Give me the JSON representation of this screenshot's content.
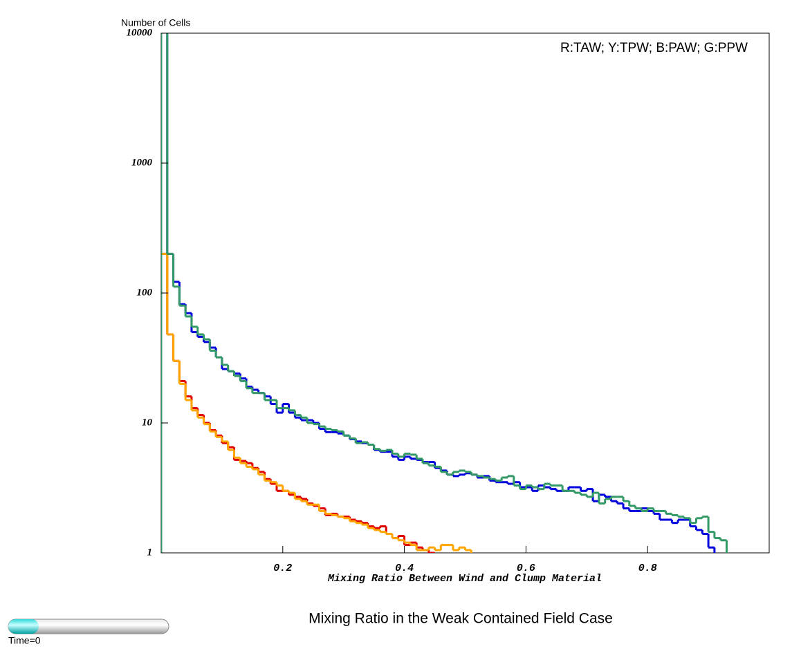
{
  "chart_data": {
    "type": "histogram-step",
    "title": "Mixing Ratio in the Weak Contained Field Case",
    "xlabel": "Mixing Ratio Between Wind and Clump Material",
    "ylabel": "Number of Cells",
    "annotation": "R:TAW; Y:TPW; B:PAW; G:PPW",
    "time_label": "Time=0",
    "log_y": true,
    "xlim": [
      0,
      1
    ],
    "ylim": [
      1,
      10000
    ],
    "xticks": [
      0.2,
      0.4,
      0.6,
      0.8
    ],
    "yticks": [
      1,
      10,
      100,
      1000,
      10000
    ],
    "bins": [
      0,
      0.01,
      0.02,
      0.03,
      0.04,
      0.05,
      0.06,
      0.07,
      0.08,
      0.09,
      0.1,
      0.11,
      0.12,
      0.13,
      0.14,
      0.15,
      0.16,
      0.17,
      0.18,
      0.19,
      0.2,
      0.21,
      0.22,
      0.23,
      0.24,
      0.25,
      0.26,
      0.27,
      0.28,
      0.29,
      0.3,
      0.31,
      0.32,
      0.33,
      0.34,
      0.35,
      0.36,
      0.37,
      0.38,
      0.39,
      0.4,
      0.41,
      0.42,
      0.43,
      0.44,
      0.45,
      0.46,
      0.47,
      0.48,
      0.49,
      0.5,
      0.51,
      0.52,
      0.53,
      0.54,
      0.55,
      0.56,
      0.57,
      0.58,
      0.59,
      0.6,
      0.61,
      0.62,
      0.63,
      0.64,
      0.65,
      0.66,
      0.67,
      0.68,
      0.69,
      0.7,
      0.71,
      0.72,
      0.73,
      0.74,
      0.75,
      0.76,
      0.77,
      0.78,
      0.79,
      0.8,
      0.81,
      0.82,
      0.83,
      0.84,
      0.85,
      0.86,
      0.87,
      0.88,
      0.89,
      0.9,
      0.91,
      0.92,
      0.93,
      0.94,
      0.95,
      0.96,
      0.97,
      0.98,
      0.99,
      1
    ],
    "series": [
      {
        "color": "#e00000",
        "values": [
          200,
          48,
          30,
          21,
          16,
          13,
          11.5,
          10,
          8.8,
          8,
          7,
          6.5,
          5.2,
          5.1,
          4.9,
          4.5,
          4.2,
          3.7,
          3.4,
          3.0,
          3.0,
          2.8,
          2.7,
          2.6,
          2.4,
          2.3,
          2.2,
          1.95,
          2.0,
          1.9,
          1.9,
          1.8,
          1.75,
          1.7,
          1.6,
          1.55,
          1.6,
          1.4,
          1.3,
          1.35,
          1.15,
          1.2,
          1.1,
          1.05,
          1.0,
          null,
          null,
          null,
          null,
          null,
          null,
          null,
          null,
          null,
          null,
          null,
          null,
          null,
          null,
          null,
          null,
          null,
          null,
          null,
          null,
          null,
          null,
          null,
          null,
          null,
          null,
          null,
          null,
          null,
          null,
          null,
          null,
          null,
          null,
          null,
          null,
          null,
          null,
          null,
          null,
          null,
          null,
          null,
          null,
          null,
          null,
          null,
          null,
          null,
          null,
          null,
          null,
          null,
          null,
          null
        ]
      },
      {
        "color": "#ffa500",
        "values": [
          200,
          48,
          30,
          20,
          15,
          12.5,
          11,
          9.8,
          8.6,
          7.8,
          7.2,
          6.2,
          5.4,
          4.9,
          4.6,
          4.4,
          4.0,
          3.6,
          3.5,
          3.3,
          3.0,
          2.9,
          2.6,
          2.5,
          2.35,
          2.35,
          2.1,
          2.0,
          1.95,
          1.9,
          1.85,
          1.75,
          1.7,
          1.65,
          1.55,
          1.5,
          1.45,
          1.4,
          1.3,
          1.25,
          1.2,
          1.15,
          1.05,
          1.05,
          1.1,
          1.05,
          1.15,
          1.15,
          1.05,
          1.1,
          1.05,
          null,
          null,
          null,
          null,
          null,
          null,
          null,
          null,
          null,
          null,
          null,
          null,
          null,
          null,
          null,
          null,
          null,
          null,
          null,
          null,
          null,
          null,
          null,
          null,
          null,
          null,
          null,
          null,
          null,
          null,
          null,
          null,
          null,
          null,
          null,
          null,
          null,
          null,
          null,
          null,
          null,
          null,
          null,
          null,
          null,
          null,
          null,
          null,
          null
        ]
      },
      {
        "color": "#0000dd",
        "values": [
          15000,
          200,
          122,
          82,
          70,
          50,
          46,
          42,
          38,
          32,
          26,
          25,
          24,
          22,
          19,
          18,
          17,
          16,
          14,
          12,
          14,
          12,
          11,
          10.5,
          10.5,
          10,
          9,
          8.5,
          8.5,
          8.3,
          8,
          7.5,
          7.2,
          7,
          6.8,
          6.2,
          6,
          6,
          5.5,
          5.2,
          5.5,
          5.3,
          5.2,
          5,
          5,
          4.5,
          4.3,
          4,
          3.9,
          4,
          4.1,
          4,
          3.8,
          3.9,
          3.6,
          3.5,
          3.5,
          3.4,
          3.5,
          3.2,
          3.2,
          3.0,
          3.3,
          3.2,
          3.1,
          3.0,
          3.0,
          3.2,
          3.2,
          3.0,
          3.1,
          2.5,
          2.8,
          2.7,
          2.5,
          2.4,
          2.2,
          2.1,
          2.1,
          2.2,
          2.1,
          2.0,
          1.8,
          1.8,
          1.7,
          1.8,
          1.8,
          1.6,
          1.5,
          1.4,
          1.1,
          null,
          null,
          null,
          null,
          null,
          null,
          null,
          null,
          null
        ]
      },
      {
        "color": "#339966",
        "values": [
          15000,
          200,
          112,
          80,
          66,
          55,
          48,
          44,
          36,
          32,
          28,
          25,
          23,
          21,
          18.5,
          17,
          17,
          15,
          15,
          13,
          13,
          12.5,
          11.5,
          11,
          10,
          9.8,
          9.4,
          9.0,
          8.8,
          8.6,
          8.0,
          7.6,
          7.0,
          7.1,
          6.8,
          6.3,
          6.1,
          6.2,
          5.8,
          5.5,
          5.8,
          5.7,
          5.3,
          4.9,
          4.7,
          4.6,
          4.2,
          4.0,
          4.2,
          4.3,
          4.2,
          4.0,
          3.9,
          3.8,
          3.7,
          3.6,
          3.8,
          3.9,
          3.3,
          3.1,
          3.3,
          3.2,
          3.1,
          3.4,
          3.3,
          3.3,
          3.0,
          3.0,
          2.9,
          2.8,
          2.7,
          2.9,
          2.4,
          2.6,
          2.7,
          2.7,
          2.5,
          2.3,
          2.2,
          2.1,
          2.2,
          2.1,
          2.1,
          2.0,
          1.95,
          1.9,
          1.85,
          1.7,
          1.85,
          1.9,
          1.45,
          1.3,
          1.25,
          null,
          null,
          null,
          null,
          null,
          null,
          null
        ]
      }
    ]
  }
}
